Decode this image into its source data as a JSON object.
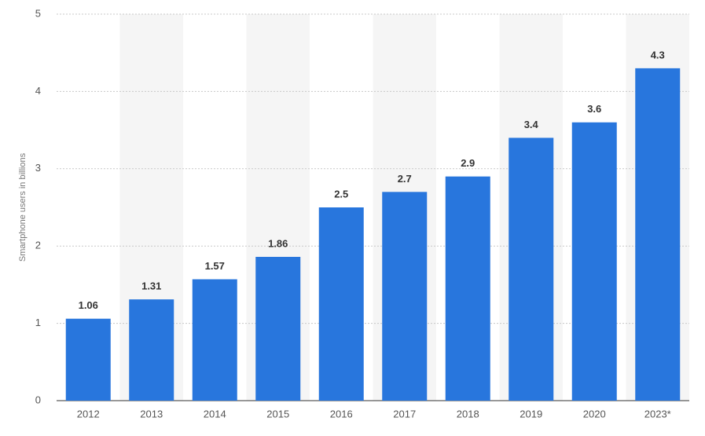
{
  "chart_data": {
    "type": "bar",
    "y_label": "Smartphone users in billions",
    "categories": [
      "2012",
      "2013",
      "2014",
      "2015",
      "2016",
      "2017",
      "2018",
      "2019",
      "2020",
      "2023*"
    ],
    "values": [
      1.06,
      1.31,
      1.57,
      1.86,
      2.5,
      2.7,
      2.9,
      3.4,
      3.6,
      4.3
    ],
    "color": "#2876dd",
    "ylim": [
      0,
      5
    ],
    "yticks": [
      0,
      1,
      2,
      3,
      4,
      5
    ],
    "grid": true
  }
}
